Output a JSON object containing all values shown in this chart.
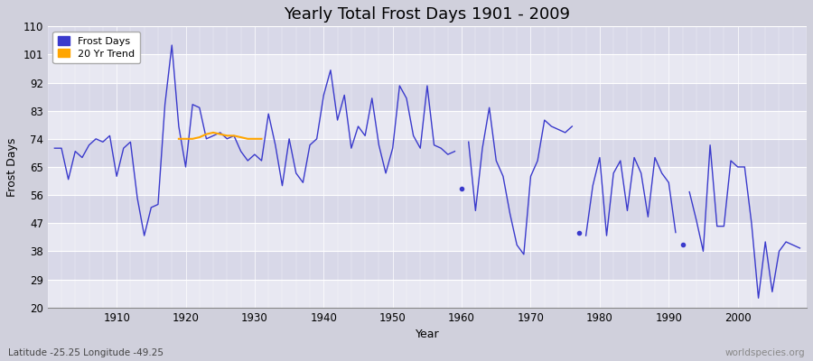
{
  "title": "Yearly Total Frost Days 1901 - 2009",
  "xlabel": "Year",
  "ylabel": "Frost Days",
  "lat_lon_label": "Latitude -25.25 Longitude -49.25",
  "watermark": "worldspecies.org",
  "frost_days": {
    "1901": 71,
    "1902": 71,
    "1903": 61,
    "1904": 70,
    "1905": 68,
    "1906": 72,
    "1907": 74,
    "1908": 73,
    "1909": 75,
    "1910": 62,
    "1911": 71,
    "1912": 73,
    "1913": 55,
    "1914": 43,
    "1915": 52,
    "1916": 53,
    "1917": 85,
    "1918": 104,
    "1919": 78,
    "1920": 65,
    "1921": 85,
    "1922": 84,
    "1923": 74,
    "1924": 75,
    "1925": 76,
    "1926": 74,
    "1927": 75,
    "1928": 70,
    "1929": 67,
    "1930": 69,
    "1931": 67,
    "1932": 82,
    "1933": 72,
    "1934": 59,
    "1935": 74,
    "1936": 63,
    "1937": 60,
    "1938": 72,
    "1939": 74,
    "1940": 88,
    "1941": 96,
    "1942": 80,
    "1943": 88,
    "1944": 71,
    "1945": 78,
    "1946": 75,
    "1947": 87,
    "1948": 72,
    "1949": 63,
    "1950": 71,
    "1951": 91,
    "1952": 87,
    "1953": 75,
    "1954": 71,
    "1955": 91,
    "1956": 72,
    "1957": 71,
    "1958": 69,
    "1959": 70,
    "1961": 73,
    "1962": 51,
    "1963": 71,
    "1964": 84,
    "1965": 67,
    "1966": 62,
    "1967": 50,
    "1968": 40,
    "1969": 37,
    "1970": 62,
    "1971": 67,
    "1972": 80,
    "1973": 78,
    "1974": 77,
    "1975": 76,
    "1976": 78,
    "1978": 43,
    "1979": 59,
    "1980": 68,
    "1981": 43,
    "1982": 63,
    "1983": 67,
    "1984": 51,
    "1985": 68,
    "1986": 63,
    "1987": 49,
    "1988": 68,
    "1989": 63,
    "1990": 60,
    "1991": 44,
    "1993": 57,
    "1994": 48,
    "1995": 38,
    "1996": 72,
    "1997": 46,
    "1998": 46,
    "1999": 67,
    "2000": 65,
    "2001": 65,
    "2002": 47,
    "2003": 23,
    "2004": 41,
    "2005": 25,
    "2006": 38,
    "2007": 41,
    "2008": 40,
    "2009": 39
  },
  "isolated_points": {
    "1960": 58,
    "1977": 44,
    "1992": 40
  },
  "trend_years": [
    1919,
    1920,
    1921,
    1922,
    1923,
    1924,
    1925,
    1926,
    1927,
    1928,
    1929,
    1930,
    1931
  ],
  "trend_values": [
    74,
    74,
    74,
    74.5,
    75.5,
    76,
    75.5,
    75,
    75,
    74.5,
    74,
    74,
    74
  ],
  "line_color": "#3a3acc",
  "trend_color": "#ffa500",
  "bg_color": "#d0d0dc",
  "plot_bg_light": "#e8e8f2",
  "plot_bg_dark": "#d8d8e8",
  "ylim": [
    20,
    110
  ],
  "yticks": [
    20,
    29,
    38,
    47,
    56,
    65,
    74,
    83,
    92,
    101,
    110
  ],
  "xlim": [
    1900,
    2010
  ],
  "title_fontsize": 13,
  "axis_fontsize": 9,
  "tick_fontsize": 8.5
}
